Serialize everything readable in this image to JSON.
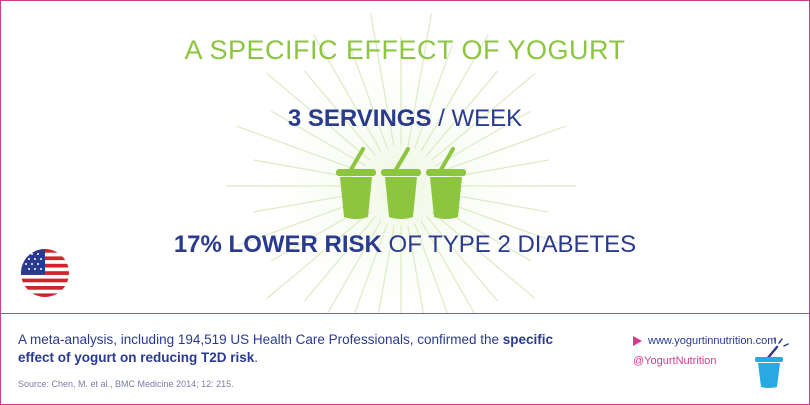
{
  "title": "A SPECIFIC EFFECT OF YOGURT",
  "servings": {
    "number": "3",
    "unit": "SERVINGS",
    "sep": " / ",
    "per": "WEEK"
  },
  "risk": {
    "percent": "17%",
    "phrase": "LOWER RISK",
    "rest": "OF TYPE 2 DIABETES"
  },
  "footer": {
    "desc_start": "A meta-analysis, including 194,519 US Health Care Professionals, confirmed the ",
    "desc_bold": "specific effect of yogurt on reducing T2D risk",
    "desc_end": ".",
    "source": "Source: Chen, M. et al., BMC Medicine 2014; 12: 215.",
    "website": "www.yogurtinnutrition.com",
    "handle": "@YogurtNutrition"
  },
  "icons": {
    "cups": "yogurt-cup-icon",
    "flag": "us-flag-icon",
    "mini": "yogurt-logo-icon",
    "arrow": "play-arrow-icon"
  },
  "colors": {
    "green": "#8cc63f",
    "navy": "#2a3a8f",
    "pink": "#d23a8c",
    "cyan": "#29a9e1"
  }
}
